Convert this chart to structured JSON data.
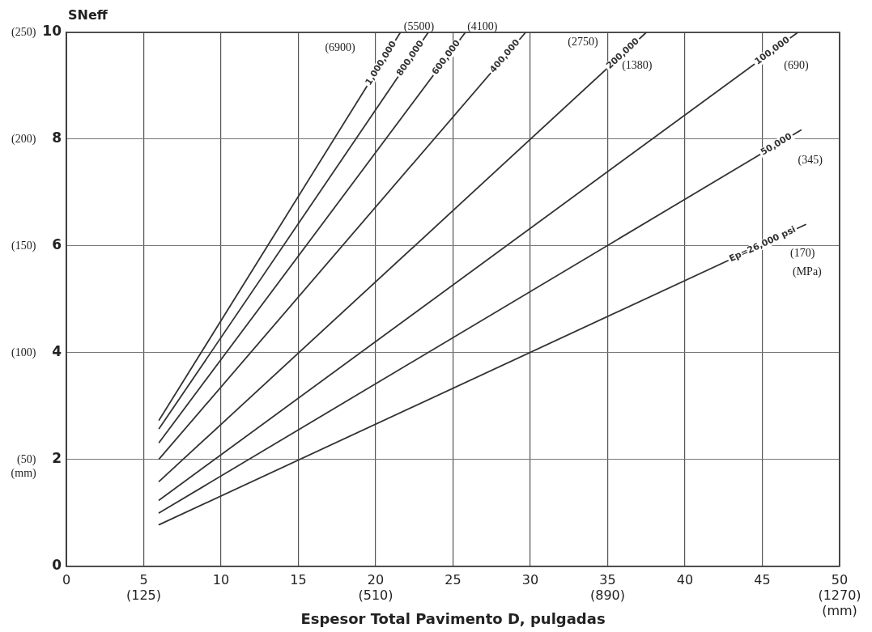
{
  "chart_data": {
    "type": "line",
    "xlabel": "Espesor Total Pavimento D, pulgadas",
    "ylabel": "SNeff",
    "y2label": "(mm)",
    "xlim": [
      0,
      50
    ],
    "ylim": [
      0,
      10
    ],
    "y2lim": [
      0,
      250
    ],
    "xticks": [
      0,
      {
        "value": 5,
        "label": "5\n(125)"
      },
      10,
      15,
      {
        "value": 20,
        "label": "20\n(510)"
      },
      25,
      30,
      {
        "value": 35,
        "label": "35\n(890)"
      },
      40,
      45,
      {
        "value": 50,
        "label": "50\n(1270)\n(mm)"
      }
    ],
    "yticks": [
      0,
      2,
      4,
      6,
      8,
      10
    ],
    "y2ticks": [
      {
        "value": 50,
        "label": "(50)"
      },
      {
        "value": 100,
        "label": "(100)"
      },
      {
        "value": 150,
        "label": "(150)"
      },
      {
        "value": 200,
        "label": "(200)"
      },
      {
        "value": 250,
        "label": "(250)"
      }
    ],
    "grid": true,
    "legend": false,
    "marker": "none",
    "line_style": "solid",
    "series": [
      {
        "name": "1,000,000",
        "color": "#333333",
        "x": [
          6,
          21.6
        ],
        "values": [
          2.74,
          10
        ]
      },
      {
        "name": "800,000",
        "color": "#333333",
        "x": [
          6,
          23.4
        ],
        "values": [
          2.58,
          10
        ]
      },
      {
        "name": "600,000",
        "color": "#333333",
        "x": [
          6,
          25.8
        ],
        "values": [
          2.32,
          10
        ]
      },
      {
        "name": "400,000",
        "color": "#333333",
        "x": [
          6,
          29.7
        ],
        "values": [
          2.01,
          10
        ]
      },
      {
        "name": "200,000",
        "color": "#333333",
        "x": [
          6,
          37.5
        ],
        "values": [
          1.59,
          10
        ]
      },
      {
        "name": "100,000",
        "color": "#333333",
        "x": [
          6,
          47.3
        ],
        "values": [
          1.24,
          10
        ]
      },
      {
        "name": "50,000",
        "color": "#333333",
        "x": [
          6,
          47.5
        ],
        "values": [
          1.0,
          8.17
        ]
      },
      {
        "name": "Ep=26,000 psi",
        "color": "#333333",
        "x": [
          6,
          47.8
        ],
        "values": [
          0.78,
          6.4
        ]
      }
    ],
    "annotations": [
      "(6900)",
      "(5500)",
      "(4100)",
      "(2750)",
      "(1380)",
      "(690)",
      "(345)",
      "(170)",
      "(MPa)"
    ]
  }
}
